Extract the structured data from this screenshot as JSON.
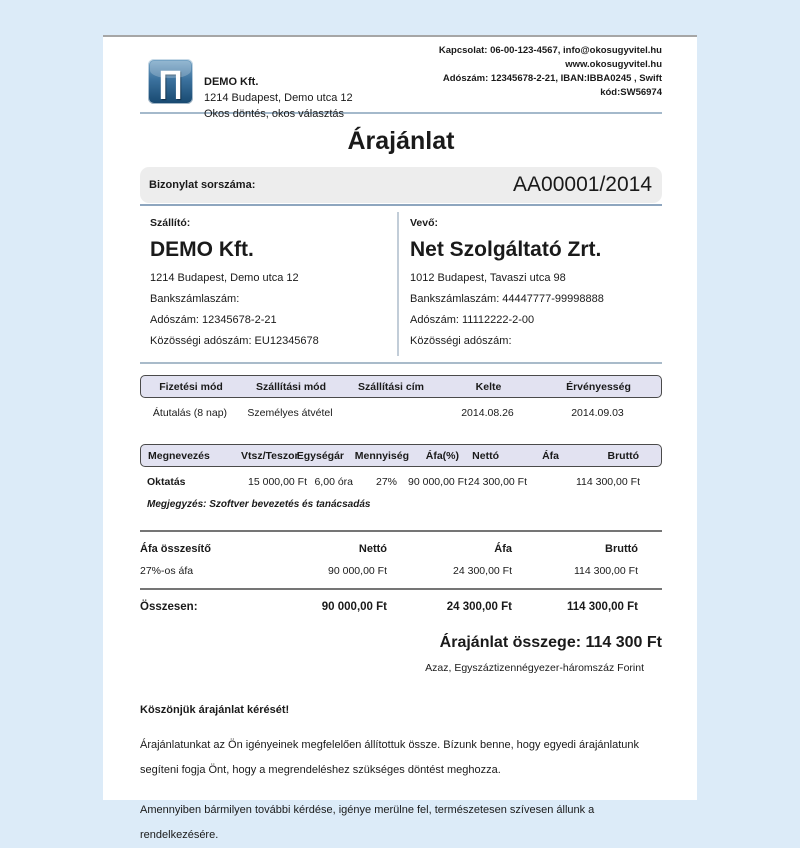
{
  "colors": {
    "page_background": "#dcebf8",
    "paper": "#ffffff",
    "divider_blue": "#9db3c6",
    "table_header_bg": "#e2e2f1",
    "table_header_border": "#4a4a4a",
    "serial_box_bg": "#ededed",
    "logo_blue_dark": "#17486f",
    "logo_blue_light": "#7aa7c7"
  },
  "header": {
    "logo_glyph": "∏",
    "company_name": "DEMO Kft.",
    "company_address": "1214 Budapest, Demo utca 12",
    "company_slogan": "Okos döntés, okos választás",
    "contact_lines": [
      "Kapcsolat: 06-00-123-4567, info@okosugyvitel.hu",
      "www.okosugyvitel.hu",
      "Adószám: 12345678-2-21, IBAN:IBBA0245 , Swift",
      "kód:SW56974"
    ]
  },
  "document": {
    "title": "Árajánlat",
    "serial_label": "Bizonylat sorszáma:",
    "serial_value": "AA00001/2014"
  },
  "supplier": {
    "label": "Szállító:",
    "name": "DEMO Kft.",
    "address": "1214 Budapest, Demo utca 12",
    "bank_account": "Bankszámlaszám:",
    "tax_number": "Adószám: 12345678-2-21",
    "eu_tax_number": "Közösségi adószám: EU12345678"
  },
  "buyer": {
    "label": "Vevő:",
    "name": "Net Szolgáltató Zrt.",
    "address": "1012 Budapest, Tavaszi utca 98",
    "bank_account": "Bankszámlaszám: 44447777-99998888",
    "tax_number": "Adószám: 11112222-2-00",
    "eu_tax_number": "Közösségi adószám:"
  },
  "terms_table": {
    "headers": [
      "Fizetési mód",
      "Szállítási mód",
      "Szállítási cím",
      "Kelte",
      "Érvényesség"
    ],
    "row": [
      "Átutalás (8 nap)",
      "Személyes átvétel",
      "",
      "2014.08.26",
      "2014.09.03"
    ]
  },
  "items_table": {
    "headers": [
      "Megnevezés",
      "Vtsz/Teszor",
      "Egységár",
      "Mennyiség",
      "Áfa(%)",
      "Nettó",
      "Áfa",
      "Bruttó"
    ],
    "rows": [
      {
        "name": "Oktatás",
        "vtsz": "",
        "unit_price": "15 000,00 Ft",
        "quantity": "6,00 óra",
        "vat_percent": "27%",
        "net": "90 000,00 Ft",
        "vat": "24 300,00 Ft",
        "gross": "114 300,00 Ft",
        "note": "Megjegyzés: Szoftver bevezetés és tanácsadás"
      }
    ]
  },
  "vat_summary": {
    "headers": [
      "Áfa összesítő",
      "Nettó",
      "Áfa",
      "Bruttó"
    ],
    "rows": [
      [
        "27%-os áfa",
        "90 000,00 Ft",
        "24 300,00 Ft",
        "114 300,00 Ft"
      ]
    ],
    "total_label": "Összesen:",
    "totals": [
      "90 000,00 Ft",
      "24 300,00 Ft",
      "114 300,00 Ft"
    ]
  },
  "grand_total": {
    "amount_line": "Árajánlat összege: 114 300 Ft",
    "amount_words": "Azaz, Egyszáztizennégyezer-háromszáz Forint"
  },
  "footer": {
    "thanks": "Köszönjük árajánlat kérését!",
    "paragraph1": "Árajánlatunkat az Ön igényeinek megfelelően állítottuk össze. Bízunk benne, hogy egyedi árajánlatunk segíteni fogja Önt, hogy a megrendeléshez szükséges döntést meghozza.",
    "paragraph2": "Amennyiben bármilyen további kérdése, igénye merülne fel, természetesen szívesen állunk a rendelkezésére."
  }
}
